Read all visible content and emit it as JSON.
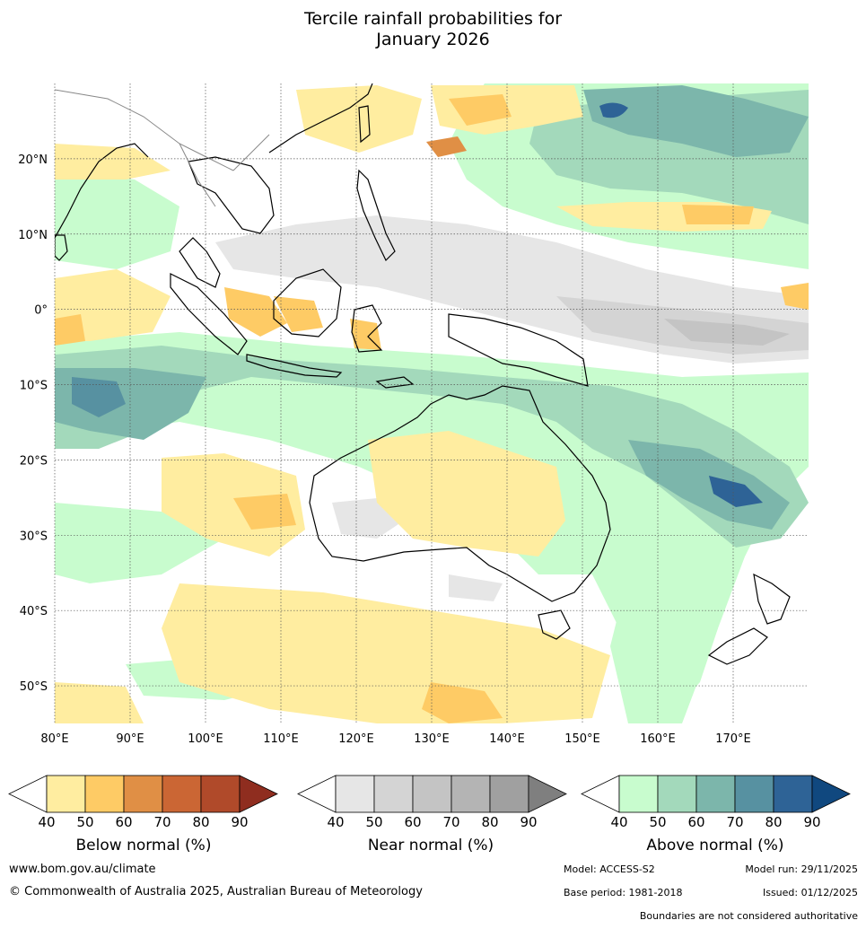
{
  "title": {
    "line1": "Tercile rainfall probabilities for",
    "line2": "January 2026"
  },
  "map": {
    "lon_range": [
      80,
      180
    ],
    "lat_range": [
      -55,
      30
    ],
    "lon_ticks": [
      "80°E",
      "90°E",
      "100°E",
      "110°E",
      "120°E",
      "130°E",
      "140°E",
      "150°E",
      "160°E",
      "170°E"
    ],
    "lat_ticks": [
      "20°N",
      "10°N",
      "0°",
      "10°S",
      "20°S",
      "30°S",
      "40°S",
      "50°S"
    ],
    "grid": true
  },
  "legends": [
    {
      "title": "Below normal (%)",
      "ticks": [
        "40",
        "50",
        "60",
        "70",
        "80",
        "90"
      ],
      "colors": [
        "#ffffff",
        "#ffeda0",
        "#fecb65",
        "#e08f45",
        "#cb6634",
        "#b04a2a",
        "#8f2d1f"
      ]
    },
    {
      "title": "Near normal (%)",
      "ticks": [
        "40",
        "50",
        "60",
        "70",
        "80",
        "90"
      ],
      "colors": [
        "#ffffff",
        "#e6e6e6",
        "#d4d4d4",
        "#c4c4c4",
        "#b4b4b4",
        "#a0a0a0",
        "#7f7f7f"
      ]
    },
    {
      "title": "Above normal (%)",
      "ticks": [
        "40",
        "50",
        "60",
        "70",
        "80",
        "90"
      ],
      "colors": [
        "#ffffff",
        "#c8fcce",
        "#a3d9bb",
        "#7cb6ab",
        "#5791a1",
        "#2e6396",
        "#10487f"
      ]
    }
  ],
  "footer": {
    "website": "www.bom.gov.au/climate",
    "copyright": "© Commonwealth of Australia 2025, Australian Bureau of Meteorology",
    "model": "Model: ACCESS-S2",
    "model_run": "Model run: 29/11/2025",
    "base_period": "Base period: 1981-2018",
    "issued": "Issued: 01/12/2025",
    "disclaimer": "Boundaries are not considered authoritative"
  }
}
